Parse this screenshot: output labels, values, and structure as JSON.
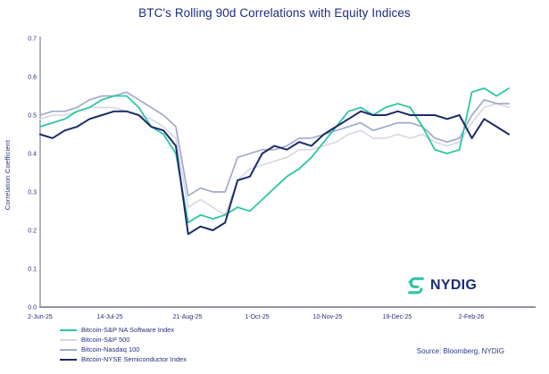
{
  "title": "BTC's Rolling 90d Correlations with Equity Indices",
  "source": "Source: Bloomberg, NYDIG",
  "logo": {
    "text": "NYDIG",
    "teal": "#2cc6a4",
    "navy": "#1b2b75"
  },
  "chart_data": {
    "type": "line",
    "title": "BTC's Rolling 90d Correlations with Equity Indices",
    "xlabel": "",
    "ylabel": "Correlation Coefficient",
    "ylim": [
      0.0,
      0.7
    ],
    "grid": false,
    "legend_position": "bottom-left",
    "axis_color": "#8f95a0",
    "yticks": [
      "0.0",
      "0.1",
      "0.2",
      "0.3",
      "0.4",
      "0.5",
      "0.6",
      "0.7"
    ],
    "xticks": [
      {
        "label": "2-Jun-25",
        "pos": 0
      },
      {
        "label": "14-Jul-25",
        "pos": 5.65
      },
      {
        "label": "21-Aug-25",
        "pos": 11.94
      },
      {
        "label": "1-Oct-25",
        "pos": 17.59
      },
      {
        "label": "10-Nov-25",
        "pos": 23.3
      },
      {
        "label": "19-Dec-25",
        "pos": 28.95
      },
      {
        "label": "2-Feb-26",
        "pos": 34.96
      }
    ],
    "categories": [
      "2-Jun-25",
      "9-Jun-25",
      "16-Jun-25",
      "23-Jun-25",
      "30-Jun-25",
      "7-Jul-25",
      "14-Jul-25",
      "21-Jul-25",
      "28-Jul-25",
      "4-Aug-25",
      "11-Aug-25",
      "18-Aug-25",
      "25-Aug-25",
      "1-Sep-25",
      "8-Sep-25",
      "15-Sep-25",
      "22-Sep-25",
      "29-Sep-25",
      "6-Oct-25",
      "13-Oct-25",
      "20-Oct-25",
      "27-Oct-25",
      "3-Nov-25",
      "10-Nov-25",
      "17-Nov-25",
      "24-Nov-25",
      "1-Dec-25",
      "8-Dec-25",
      "15-Dec-25",
      "22-Dec-25",
      "29-Dec-25",
      "5-Jan-26",
      "12-Jan-26",
      "19-Jan-26",
      "26-Jan-26",
      "2-Feb-26",
      "9-Feb-26",
      "16-Feb-26",
      "23-Feb-26"
    ],
    "series": [
      {
        "name": "Bitcoin-S&P NA Software Index",
        "color": "#2cc6a4",
        "values": [
          0.47,
          0.48,
          0.49,
          0.51,
          0.52,
          0.54,
          0.55,
          0.55,
          0.52,
          0.47,
          0.45,
          0.4,
          0.22,
          0.24,
          0.23,
          0.24,
          0.26,
          0.25,
          0.28,
          0.31,
          0.34,
          0.36,
          0.39,
          0.43,
          0.47,
          0.51,
          0.52,
          0.5,
          0.52,
          0.53,
          0.52,
          0.47,
          0.41,
          0.4,
          0.41,
          0.56,
          0.57,
          0.55,
          0.57
        ]
      },
      {
        "name": "Bitcoin-S&P 500",
        "color": "#d5d8e2",
        "values": [
          0.49,
          0.5,
          0.5,
          0.51,
          0.52,
          0.52,
          0.52,
          0.51,
          0.5,
          0.49,
          0.47,
          0.44,
          0.26,
          0.28,
          0.26,
          0.24,
          0.33,
          0.36,
          0.37,
          0.38,
          0.39,
          0.41,
          0.41,
          0.42,
          0.43,
          0.45,
          0.46,
          0.44,
          0.44,
          0.45,
          0.44,
          0.45,
          0.43,
          0.42,
          0.43,
          0.48,
          0.52,
          0.53,
          0.52
        ]
      },
      {
        "name": "Bitcoin-Nasdaq 100",
        "color": "#a1a9c9",
        "values": [
          0.5,
          0.51,
          0.51,
          0.52,
          0.54,
          0.55,
          0.55,
          0.56,
          0.54,
          0.52,
          0.5,
          0.47,
          0.29,
          0.31,
          0.3,
          0.3,
          0.39,
          0.4,
          0.41,
          0.41,
          0.42,
          0.44,
          0.44,
          0.45,
          0.46,
          0.47,
          0.48,
          0.46,
          0.47,
          0.48,
          0.48,
          0.47,
          0.44,
          0.43,
          0.44,
          0.5,
          0.54,
          0.53,
          0.53
        ]
      },
      {
        "name": "Bitcoin-NYSE Semiconductor Index",
        "color": "#1b2a68",
        "values": [
          0.45,
          0.44,
          0.46,
          0.47,
          0.49,
          0.5,
          0.51,
          0.51,
          0.5,
          0.47,
          0.46,
          0.42,
          0.19,
          0.21,
          0.2,
          0.22,
          0.33,
          0.34,
          0.4,
          0.42,
          0.41,
          0.43,
          0.42,
          0.45,
          0.47,
          0.49,
          0.51,
          0.5,
          0.5,
          0.51,
          0.5,
          0.5,
          0.5,
          0.49,
          0.5,
          0.44,
          0.49,
          0.47,
          0.45
        ]
      }
    ]
  }
}
